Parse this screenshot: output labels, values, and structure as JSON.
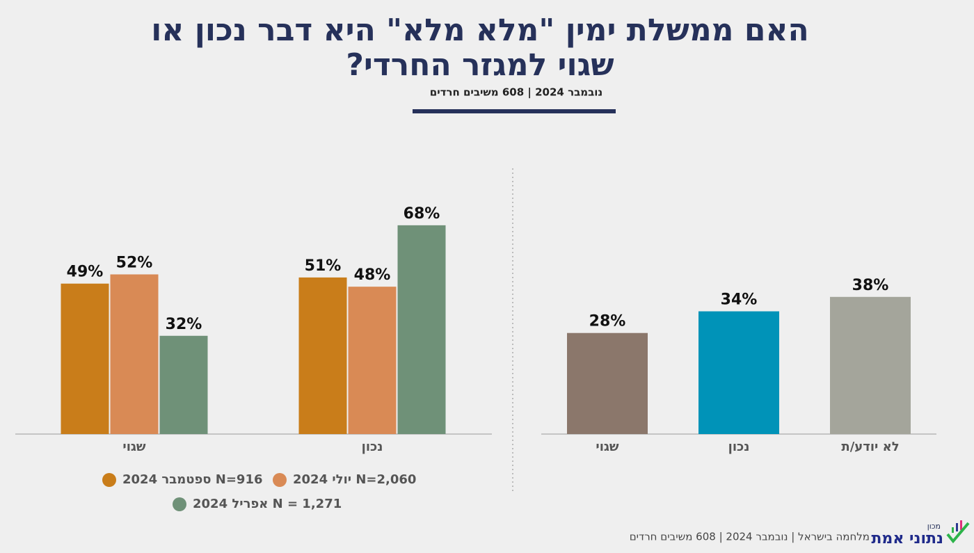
{
  "header": {
    "title_lines": [
      "האם ממשלת ימין \"מלא מלא\" היא דבר נכון או",
      "שגוי למגזר החרדי?"
    ],
    "subtitle": "נובמבר 2024 | 608 משיבים חרדים"
  },
  "chart_data": [
    {
      "type": "grouped-bar",
      "categories": [
        "שגוי",
        "נכון"
      ],
      "ylim": [
        0,
        87
      ],
      "series": [
        {
          "name": "N=916 ספטמבר 2024",
          "color": "#c97d1a",
          "values": [
            49,
            51
          ],
          "value_labels": [
            "49%",
            "51%"
          ]
        },
        {
          "name": "N=2,060 יולי 2024",
          "color": "#d98a55",
          "values": [
            52,
            48
          ],
          "value_labels": [
            "52%",
            "48%"
          ]
        },
        {
          "name": "N =  1,271 אפריל 2024",
          "color": "#6f9178",
          "values": [
            32,
            68
          ],
          "value_labels": [
            "32%",
            "68%"
          ]
        }
      ]
    },
    {
      "type": "bar",
      "categories": [
        "שגוי",
        "נכון",
        "לא יודע/ת"
      ],
      "ylim": [
        0,
        74
      ],
      "values": [
        28,
        34,
        38
      ],
      "value_labels": [
        "28%",
        "34%",
        "38%"
      ],
      "colors": [
        "#8b776b",
        "#0093b8",
        "#a4a59b"
      ]
    }
  ],
  "footer": {
    "source": "מלחמה בישראל | נובמבר 2024 | 608 משיבים חרדים",
    "logo_small": "מכון",
    "logo_name": "נתוני אמת"
  }
}
